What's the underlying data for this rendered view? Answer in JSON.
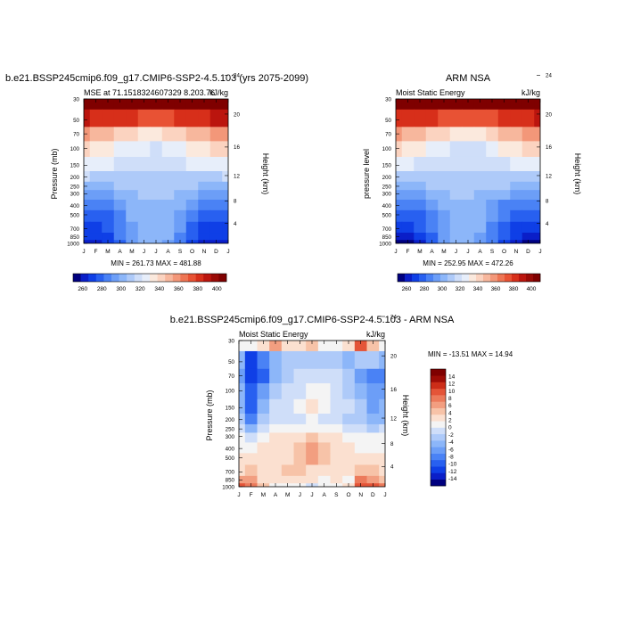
{
  "colors": {
    "panel": [
      "#00007f",
      "#0a1ec8",
      "#0f3fe6",
      "#2860f0",
      "#4a82f5",
      "#6c9ef7",
      "#8cb6f9",
      "#aecaf9",
      "#cfdef9",
      "#e7eefa",
      "#fbe9dd",
      "#fbd3c0",
      "#f7b79d",
      "#f39779",
      "#ee7554",
      "#e85234",
      "#d72f1a",
      "#bb150e",
      "#9a0a06",
      "#7f0000"
    ],
    "diff": [
      "#00007f",
      "#0a1ec8",
      "#0f3fe6",
      "#2860f0",
      "#4a82f5",
      "#6c9ef7",
      "#8cb6f9",
      "#aecaf9",
      "#cfdef9",
      "#f4f4f4",
      "#fbe0d0",
      "#f7c3a8",
      "#f29e80",
      "#ec7a5b",
      "#e45438",
      "#cc2d18",
      "#9e0c06",
      "#7f0000"
    ]
  },
  "chart_data": [
    {
      "type": "heatmap",
      "id": "model",
      "title": "b.e21.BSSP245cmip6.f09_g17.CMIP6-SSP2-4.5.103 (yrs 2075-2099)",
      "subtitle_left": "MSE at 71.1518324607329 8.203.76",
      "subtitle_right": "kJ/kg",
      "ylabel": "Pressure (mb)",
      "ylabel_right": "Height (km)",
      "x_ticks": [
        "J",
        "F",
        "M",
        "A",
        "M",
        "J",
        "J",
        "A",
        "S",
        "O",
        "N",
        "D",
        "J"
      ],
      "p_ticks": [
        30,
        50,
        70,
        100,
        150,
        200,
        250,
        300,
        400,
        500,
        700,
        850,
        1000
      ],
      "km_ticks": [
        24,
        20,
        16,
        12,
        8,
        4
      ],
      "minmax": "MIN = 261.73 MAX = 481.88",
      "colorbar": {
        "labels": [
          "260",
          "280",
          "300",
          "320",
          "340",
          "360",
          "380",
          "400"
        ],
        "min": 250,
        "max": 410,
        "step": 10
      },
      "field": {
        "pressure_levels": [
          30,
          50,
          70,
          100,
          150,
          200,
          250,
          300,
          400,
          500,
          700,
          850,
          1000
        ],
        "values": [
          [
            470,
            470,
            470,
            470,
            470,
            470,
            470,
            470,
            470,
            470,
            470,
            470,
            470
          ],
          [
            420,
            418,
            416,
            413,
            410,
            406,
            404,
            406,
            410,
            414,
            418,
            421,
            423
          ],
          [
            382,
            378,
            374,
            369,
            364,
            358,
            356,
            360,
            366,
            372,
            378,
            383,
            386
          ],
          [
            362,
            358,
            354,
            349,
            344,
            340,
            338,
            341,
            346,
            352,
            358,
            363,
            366
          ],
          [
            345,
            343,
            341,
            338,
            335,
            333,
            332,
            334,
            337,
            340,
            343,
            345,
            347
          ],
          [
            330,
            329,
            328,
            327,
            326,
            325,
            324,
            325,
            326,
            327,
            328,
            329,
            330
          ],
          [
            318,
            318,
            319,
            321,
            323,
            324,
            324,
            324,
            323,
            321,
            319,
            318,
            318
          ],
          [
            307,
            307,
            309,
            313,
            318,
            321,
            321,
            320,
            316,
            311,
            308,
            307,
            307
          ],
          [
            292,
            293,
            296,
            304,
            313,
            318,
            319,
            317,
            310,
            300,
            294,
            292,
            292
          ],
          [
            284,
            285,
            289,
            299,
            310,
            316,
            317,
            315,
            306,
            294,
            287,
            284,
            284
          ],
          [
            275,
            276,
            281,
            293,
            306,
            313,
            315,
            312,
            300,
            286,
            279,
            275,
            275
          ],
          [
            270,
            271,
            276,
            290,
            304,
            312,
            314,
            310,
            298,
            282,
            274,
            270,
            270
          ],
          [
            264,
            265,
            271,
            287,
            302,
            311,
            313,
            309,
            295,
            279,
            269,
            264,
            264
          ]
        ]
      }
    },
    {
      "type": "heatmap",
      "id": "obs",
      "title": "ARM NSA",
      "subtitle_left": "Moist Static Energy",
      "subtitle_right": "kJ/kg",
      "ylabel": "pressure level",
      "ylabel_right": "Height (km)",
      "x_ticks": [
        "J",
        "F",
        "M",
        "A",
        "M",
        "J",
        "J",
        "A",
        "S",
        "O",
        "N",
        "D",
        "J"
      ],
      "p_ticks": [
        30,
        50,
        70,
        100,
        150,
        200,
        250,
        300,
        400,
        500,
        700,
        850,
        1000
      ],
      "km_ticks": [
        24,
        20,
        16,
        12,
        8,
        4
      ],
      "minmax": "MIN = 252.95 MAX = 472.26",
      "colorbar": {
        "labels": [
          "260",
          "280",
          "300",
          "320",
          "340",
          "360",
          "380",
          "400"
        ],
        "min": 250,
        "max": 410,
        "step": 10
      },
      "field": {
        "pressure_levels": [
          30,
          50,
          70,
          100,
          150,
          200,
          250,
          300,
          400,
          500,
          700,
          850,
          1000
        ],
        "values": [
          [
            465,
            465,
            465,
            465,
            465,
            465,
            465,
            465,
            465,
            465,
            465,
            465,
            465
          ],
          [
            418,
            416,
            414,
            411,
            408,
            404,
            402,
            404,
            408,
            412,
            416,
            419,
            421
          ],
          [
            380,
            376,
            372,
            367,
            362,
            356,
            354,
            358,
            364,
            370,
            376,
            381,
            384
          ],
          [
            360,
            356,
            352,
            347,
            342,
            338,
            336,
            339,
            344,
            350,
            356,
            361,
            364
          ],
          [
            343,
            341,
            339,
            336,
            333,
            331,
            330,
            332,
            335,
            338,
            341,
            343,
            345
          ],
          [
            329,
            328,
            327,
            326,
            325,
            324,
            323,
            324,
            325,
            326,
            327,
            328,
            329
          ],
          [
            317,
            317,
            318,
            320,
            322,
            323,
            323,
            323,
            322,
            320,
            318,
            317,
            317
          ],
          [
            305,
            305,
            308,
            312,
            317,
            320,
            320,
            319,
            315,
            310,
            307,
            305,
            305
          ],
          [
            290,
            291,
            295,
            303,
            312,
            317,
            318,
            316,
            309,
            299,
            293,
            290,
            290
          ],
          [
            282,
            283,
            288,
            298,
            309,
            315,
            316,
            314,
            305,
            293,
            286,
            282,
            282
          ],
          [
            272,
            274,
            280,
            292,
            305,
            312,
            314,
            311,
            299,
            285,
            277,
            272,
            272
          ],
          [
            265,
            267,
            274,
            289,
            303,
            311,
            313,
            309,
            297,
            281,
            272,
            266,
            265
          ],
          [
            256,
            258,
            268,
            285,
            300,
            310,
            312,
            308,
            293,
            277,
            265,
            257,
            256
          ]
        ]
      }
    },
    {
      "type": "heatmap",
      "id": "diff",
      "title": "b.e21.BSSP245cmip6.f09_g17.CMIP6-SSP2-4.5.103 - ARM NSA",
      "subtitle_left": "Moist Static Energy",
      "subtitle_right": "kJ/kg",
      "ylabel": "Pressure (mb)",
      "ylabel_right": "Height (km)",
      "x_ticks": [
        "J",
        "F",
        "M",
        "A",
        "M",
        "J",
        "J",
        "A",
        "S",
        "O",
        "N",
        "D",
        "J"
      ],
      "p_ticks": [
        30,
        50,
        70,
        100,
        150,
        200,
        250,
        300,
        400,
        500,
        700,
        850,
        1000
      ],
      "km_ticks": [
        24,
        20,
        16,
        12,
        8,
        4
      ],
      "minmax": "MIN = -13.51 MAX =  14.94",
      "colorbar": {
        "labels": [
          "14",
          "12",
          "10",
          "8",
          "6",
          "4",
          "2",
          "0",
          "-2",
          "-4",
          "-6",
          "-8",
          "-10",
          "-12",
          "-14"
        ],
        "min": -16,
        "max": 16,
        "step": 2
      },
      "field": {
        "pressure_levels": [
          30,
          50,
          70,
          100,
          150,
          200,
          250,
          300,
          400,
          500,
          700,
          850,
          1000
        ],
        "values": [
          [
            2,
            3,
            4,
            8,
            5,
            4,
            6,
            3,
            2,
            4,
            13,
            6,
            2
          ],
          [
            -3,
            -11,
            -7,
            -4,
            -2,
            -1,
            -1,
            -1,
            -2,
            -3,
            -1,
            -2,
            -3
          ],
          [
            -6,
            -12,
            -9,
            -3,
            -1,
            0,
            1,
            1,
            0,
            -2,
            -6,
            -8,
            -7
          ],
          [
            -4,
            -10,
            -5,
            -1,
            0,
            1,
            2,
            2,
            1,
            -1,
            -3,
            -6,
            -5
          ],
          [
            -3,
            -9,
            -3,
            0,
            1,
            2,
            4,
            3,
            1,
            0,
            -2,
            -5,
            -4
          ],
          [
            -2,
            -8,
            -2,
            0,
            0,
            1,
            2,
            1,
            0,
            -1,
            -2,
            -4,
            -3
          ],
          [
            0,
            -3,
            0,
            2,
            2,
            3,
            3,
            3,
            2,
            1,
            0,
            -1,
            0
          ],
          [
            2,
            1,
            3,
            4,
            4,
            5,
            6,
            5,
            4,
            3,
            2,
            2,
            2
          ],
          [
            3,
            3,
            4,
            5,
            5,
            6,
            8,
            6,
            5,
            4,
            3,
            3,
            3
          ],
          [
            4,
            4,
            5,
            5,
            5,
            7,
            8,
            6,
            5,
            5,
            4,
            5,
            4
          ],
          [
            5,
            6,
            4,
            5,
            6,
            6,
            5,
            5,
            5,
            4,
            7,
            6,
            5
          ],
          [
            8,
            9,
            5,
            4,
            5,
            4,
            4,
            3,
            4,
            3,
            10,
            8,
            7
          ],
          [
            12,
            11,
            6,
            3,
            3,
            2,
            1,
            2,
            3,
            5,
            13,
            12,
            10
          ]
        ]
      }
    }
  ]
}
